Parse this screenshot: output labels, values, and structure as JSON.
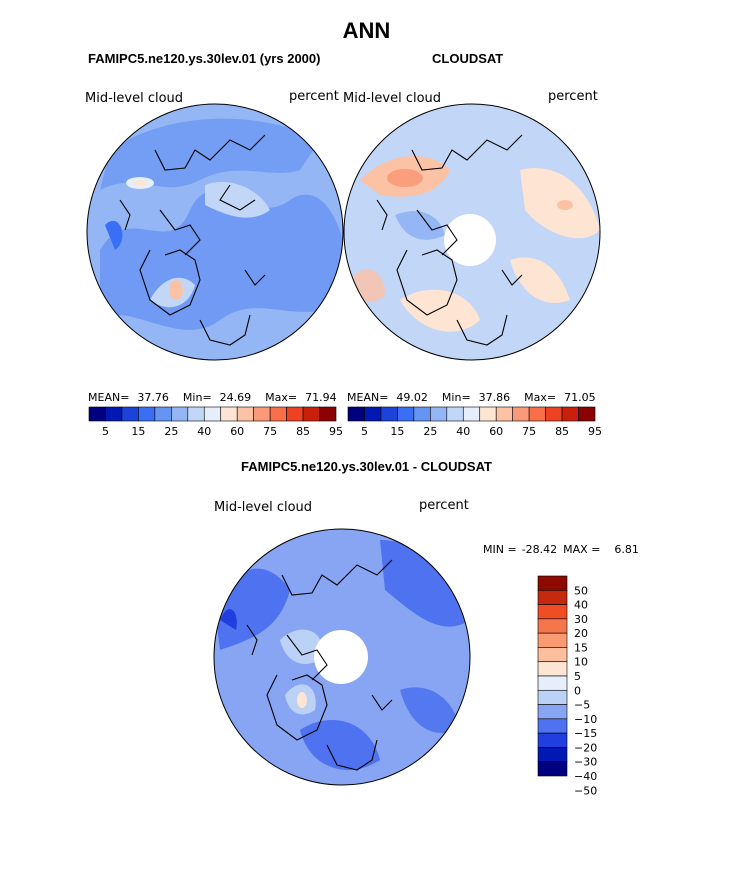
{
  "figure": {
    "season": "ANN",
    "left_title": "FAMIPC5.ne120.ys.30lev.01 (yrs 2000)",
    "right_title": "CLOUDSAT",
    "diff_title": "FAMIPC5.ne120.ys.30lev.01 - CLOUDSAT"
  },
  "colors": {
    "abs_scale": [
      "#00007f",
      "#0019b2",
      "#1a44d9",
      "#3a6ff5",
      "#6694f2",
      "#94b6f5",
      "#c2d6f7",
      "#e6eefa",
      "#fde4d3",
      "#fcc2a6",
      "#fa9a78",
      "#f86f4a",
      "#ee4322",
      "#c8200b",
      "#8b0000"
    ],
    "diff_scale": [
      "#000080",
      "#0019b5",
      "#1f3fe0",
      "#4f73f0",
      "#87a5f2",
      "#bcd1f6",
      "#e6eefa",
      "#fde4d3",
      "#fbbf9e",
      "#f99a72",
      "#f6764c",
      "#ef4d24",
      "#c62a0e",
      "#8c0a00"
    ],
    "coast": "#000000"
  },
  "chart_data": [
    {
      "type": "heatmap",
      "title": "FAMIPC5.ne120.ys.30lev.01 (yrs 2000)",
      "variable": "Mid-level cloud",
      "units": "percent",
      "projection": "polar-stereographic-north",
      "stats": {
        "mean_label": "MEAN=",
        "mean": "37.76",
        "min_label": "Min=",
        "min": "24.69",
        "max_label": "Max=",
        "max": "71.94"
      },
      "colorbar_labels": [
        "5",
        "15",
        "25",
        "40",
        "60",
        "75",
        "85",
        "95"
      ]
    },
    {
      "type": "heatmap",
      "title": "CLOUDSAT",
      "variable": "Mid-level cloud",
      "units": "percent",
      "projection": "polar-stereographic-north",
      "stats": {
        "mean_label": "MEAN=",
        "mean": "49.02",
        "min_label": "Min=",
        "min": "37.86",
        "max_label": "Max=",
        "max": "71.05"
      },
      "colorbar_labels": [
        "5",
        "15",
        "25",
        "40",
        "60",
        "75",
        "85",
        "95"
      ]
    },
    {
      "type": "heatmap",
      "title": "FAMIPC5.ne120.ys.30lev.01 - CLOUDSAT",
      "variable": "Mid-level cloud",
      "units": "percent",
      "projection": "polar-stereographic-north",
      "stats": {
        "min_label": "MIN =",
        "min": "-28.42",
        "max_label": "MAX =",
        "max": "6.81"
      },
      "colorbar_labels": [
        "50",
        "40",
        "30",
        "20",
        "15",
        "10",
        "5",
        "0",
        "−5",
        "−10",
        "−15",
        "−20",
        "−30",
        "−40",
        "−50"
      ]
    }
  ]
}
